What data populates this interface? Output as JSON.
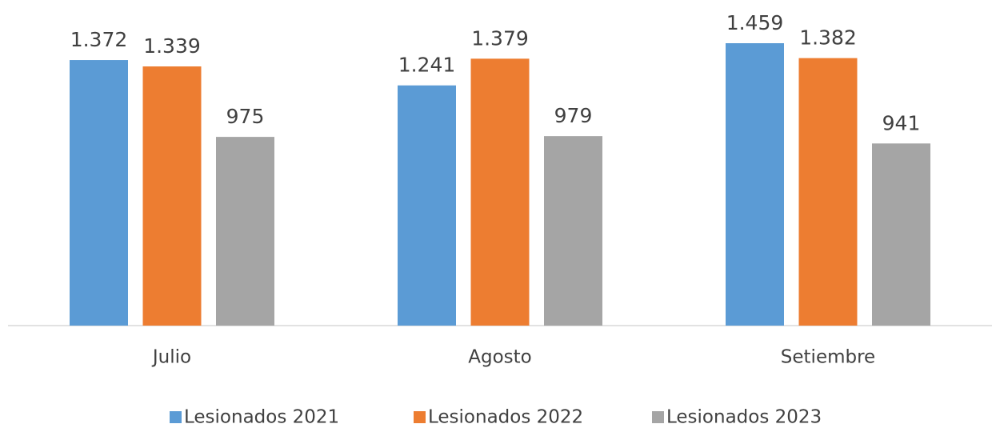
{
  "chart_data": {
    "type": "bar",
    "categories": [
      "Julio",
      "Agosto",
      "Setiembre"
    ],
    "series": [
      {
        "name": "Lesionados 2021",
        "color": "#5b9bd5",
        "values": [
          1372,
          1241,
          1459
        ],
        "value_labels": [
          "1.372",
          "1.241",
          "1.459"
        ]
      },
      {
        "name": "Lesionados 2022",
        "color": "#ed7d31",
        "values": [
          1339,
          1379,
          1382
        ],
        "value_labels": [
          "1.339",
          "1.379",
          "1.382"
        ]
      },
      {
        "name": "Lesionados 2023",
        "color": "#a5a5a5",
        "values": [
          975,
          979,
          941
        ],
        "value_labels": [
          "975",
          "979",
          "941"
        ]
      }
    ],
    "legend": "bottom"
  }
}
